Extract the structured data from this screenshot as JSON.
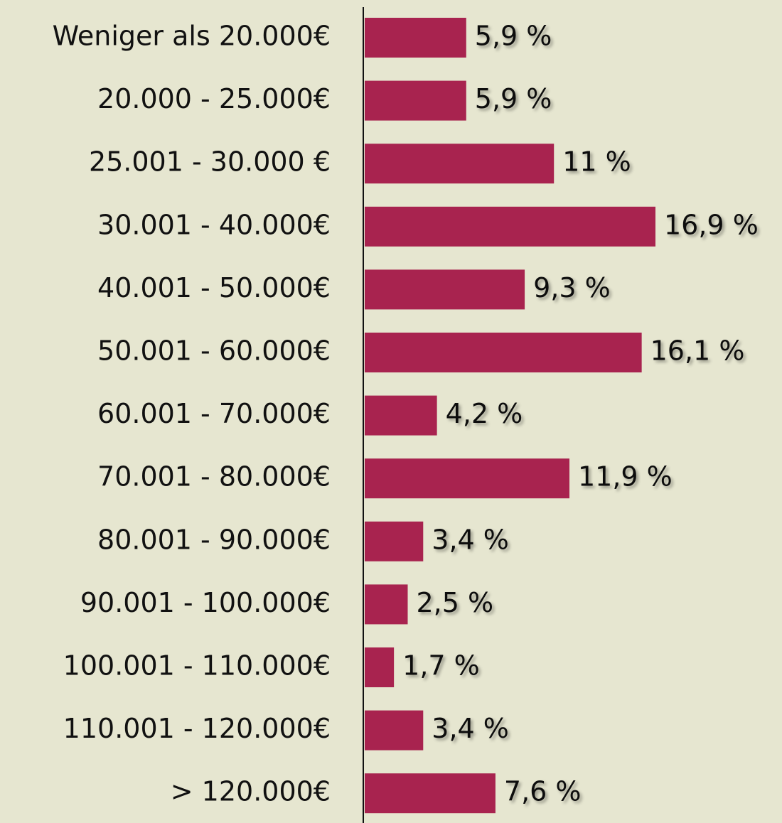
{
  "chart_data": {
    "type": "barh",
    "categories": [
      "Weniger als 20.000€",
      "20.000 - 25.000€",
      "25.001 - 30.000 €",
      "30.001 - 40.000€",
      "40.001 - 50.000€",
      "50.001 - 60.000€",
      "60.001 - 70.000€",
      "70.001 - 80.000€",
      "80.001 - 90.000€",
      "90.001 - 100.000€",
      "100.001 - 110.000€",
      "110.001 - 120.000€",
      "> 120.000€"
    ],
    "values": [
      5.9,
      5.9,
      11,
      16.9,
      9.3,
      16.1,
      4.2,
      11.9,
      3.4,
      2.5,
      1.7,
      3.4,
      7.6
    ],
    "value_labels": [
      "5,9 %",
      "5,9 %",
      "11 %",
      "16,9 %",
      "9,3 %",
      "16,1 %",
      "4,2 %",
      "11,9 %",
      "3,4 %",
      "2,5 %",
      "1,7 %",
      "3,4 %",
      "7,6 %"
    ],
    "color": "#a8234f"
  }
}
